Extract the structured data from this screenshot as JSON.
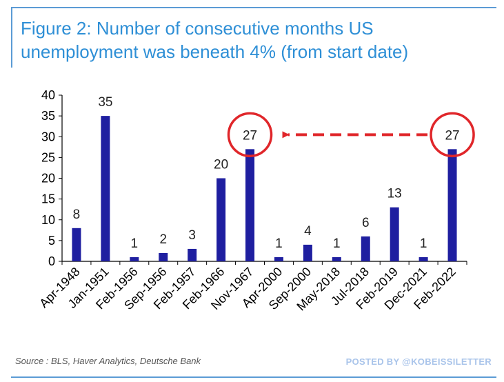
{
  "chart_data": {
    "type": "bar",
    "title": "Figure 2: Number of consecutive months US unemployment was beneath 4% (from start date)",
    "categories": [
      "Apr-1948",
      "Jan-1951",
      "Feb-1956",
      "Sep-1956",
      "Feb-1957",
      "Feb-1966",
      "Nov-1967",
      "Apr-2000",
      "Sep-2000",
      "May-2018",
      "Jul-2018",
      "Feb-2019",
      "Dec-2021",
      "Feb-2022"
    ],
    "values": [
      8,
      35,
      1,
      2,
      3,
      20,
      27,
      1,
      4,
      1,
      6,
      13,
      1,
      27
    ],
    "ylim": [
      0,
      40
    ],
    "yticks": [
      0,
      5,
      10,
      15,
      20,
      25,
      30,
      35,
      40
    ],
    "xlabel": "",
    "ylabel": "",
    "bar_color": "#1f1fa0",
    "highlight_color": "#e0262a",
    "highlighted": [
      "Nov-1967",
      "Feb-2022"
    ]
  },
  "source_text": "Source : BLS, Haver Analytics, Deutsche Bank",
  "posted_by": "POSTED BY @KOBEISSILETTER",
  "colors": {
    "title": "#2e8fd6",
    "rule": "#5b9bd5"
  }
}
